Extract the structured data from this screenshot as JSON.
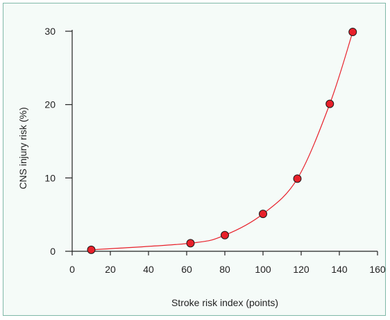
{
  "chart_data": {
    "type": "line",
    "xlabel": "Stroke risk index (points)",
    "ylabel": "CNS injury risk (%)",
    "xlim": [
      0,
      160
    ],
    "ylim": [
      0,
      30
    ],
    "x_ticks": [
      0,
      20,
      40,
      60,
      80,
      100,
      120,
      140,
      160
    ],
    "y_ticks": [
      0,
      10,
      20,
      30
    ],
    "grid": false,
    "colors": {
      "line": "#e8202a",
      "marker_fill": "#e8202a",
      "marker_stroke": "#1a1a1a",
      "axis": "#222222"
    },
    "series": [
      {
        "x": [
          10,
          62,
          80,
          100,
          118,
          135,
          147
        ],
        "y": [
          0.2,
          1.1,
          2.2,
          5.1,
          9.9,
          20.1,
          29.9
        ],
        "markers": true
      }
    ]
  }
}
